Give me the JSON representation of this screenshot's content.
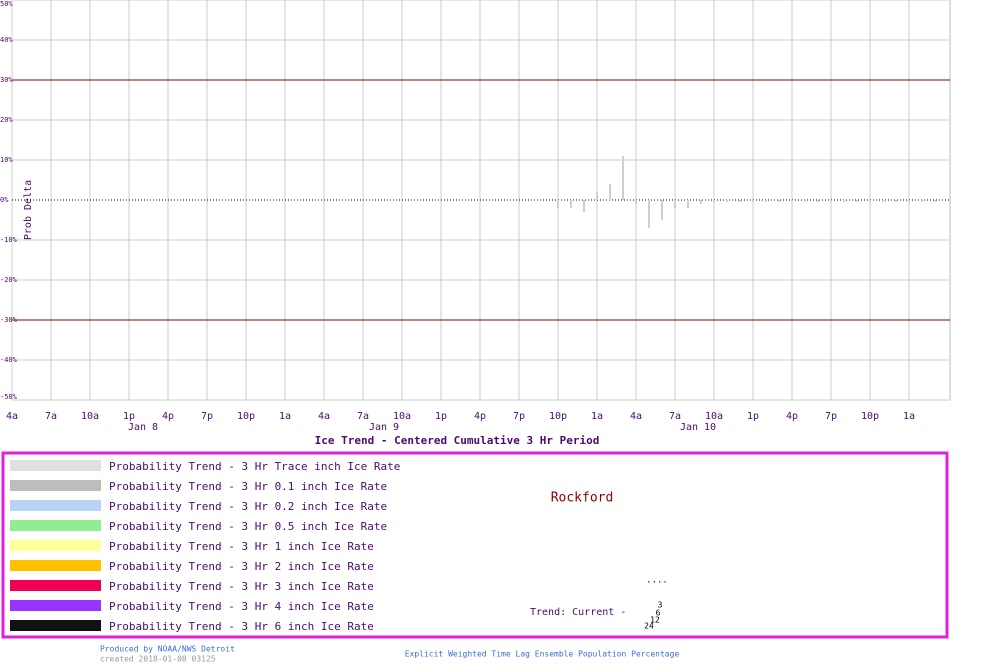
{
  "chart_data": {
    "type": "bar",
    "title": "Ice Trend - Centered Cumulative 3 Hr Period",
    "y_label": "Prob Delta",
    "categories": [
      "4a",
      null,
      null,
      "7a",
      null,
      null,
      "10a",
      null,
      null,
      "1p",
      null,
      null,
      "4p",
      null,
      null,
      "7p",
      null,
      null,
      "10p",
      null,
      null,
      "1a",
      null,
      null,
      "4a",
      null,
      null,
      "7a",
      null,
      null,
      "10a",
      null,
      null,
      "1p",
      null,
      null,
      "4p",
      null,
      null,
      "7p",
      null,
      null,
      "10p",
      null,
      null,
      "1a",
      null,
      null,
      "4a",
      null,
      null,
      "7a",
      null,
      null,
      "10a",
      null,
      null,
      "1p",
      null,
      null,
      "4p",
      null,
      null,
      "7p",
      null,
      null,
      "10p",
      null,
      null,
      "1a",
      null,
      null
    ],
    "day_labels": [
      "Jan  8",
      "Jan  9",
      "Jan 10"
    ],
    "values": [
      0,
      0,
      0,
      0,
      0,
      0,
      0,
      0,
      0,
      0,
      0,
      0,
      0,
      0,
      0,
      0,
      0,
      0,
      0,
      0,
      0,
      0,
      0,
      0,
      0,
      0,
      0,
      0,
      0,
      0,
      0,
      0,
      0,
      0,
      0,
      0,
      0,
      0,
      0,
      0,
      0,
      0,
      -2,
      -2,
      -3,
      2,
      4,
      11,
      -1,
      -7,
      -5,
      -2,
      -2,
      -1,
      -0.5,
      -0.5,
      -0.5,
      -0.5,
      -0.5,
      -0.5,
      -0.5,
      -0.5,
      -0.5,
      -0.5,
      -0.5,
      -0.5,
      -0.5,
      -0.5,
      -0.5,
      -0.5,
      -0.5,
      -0.5
    ],
    "color": "#cfcfcf",
    "ylim": [
      -50,
      50
    ],
    "yticks": [
      {
        "value": -50,
        "label": "-50%"
      },
      {
        "value": -40,
        "label": "-40%"
      },
      {
        "value": -30,
        "label": "-30%"
      },
      {
        "value": -20,
        "label": "-20%"
      },
      {
        "value": -10,
        "label": "-10%"
      },
      {
        "value": 0,
        "label": "0%"
      },
      {
        "value": 10,
        "label": "10%"
      },
      {
        "value": 20,
        "label": "20%"
      },
      {
        "value": 30,
        "label": "30%"
      },
      {
        "value": 40,
        "label": "40%"
      },
      {
        "value": 50,
        "label": "50%"
      }
    ],
    "threshold_lines": [
      30,
      -30
    ],
    "threshold_color": "#8b0000",
    "grid": true,
    "legend": [
      {
        "label": "Probability Trend -  3 Hr Trace inch Ice Rate",
        "color": "#e0e0e0"
      },
      {
        "label": "Probability Trend -  3 Hr 0.1 inch Ice Rate",
        "color": "#bdbdbd"
      },
      {
        "label": "Probability Trend -  3 Hr 0.2 inch Ice Rate",
        "color": "#b9d3f5"
      },
      {
        "label": "Probability Trend -  3 Hr 0.5 inch Ice Rate",
        "color": "#90ee90"
      },
      {
        "label": "Probability Trend -  3 Hr 1 inch Ice Rate",
        "color": "#ffff99"
      },
      {
        "label": "Probability Trend -  3 Hr 2 inch Ice Rate",
        "color": "#ffc000"
      },
      {
        "label": "Probability Trend -  3 Hr 3 inch Ice Rate",
        "color": "#ee0055"
      },
      {
        "label": "Probability Trend -  3 Hr 4 inch Ice Rate",
        "color": "#9933ff"
      },
      {
        "label": "Probability Trend -  3 Hr 6 inch Ice Rate",
        "color": "#111111"
      }
    ],
    "location": "Rockford",
    "trend_label": "Trend: Current -",
    "trend_hours": [
      "3",
      "6",
      "12",
      "24"
    ],
    "trend_marker": "....",
    "credit": "Produced by NOAA/NWS Detroit",
    "created": "created 2018-01-08 03125",
    "footnote": "Explicit Weighted Time Lag Ensemble Population Percentage"
  }
}
